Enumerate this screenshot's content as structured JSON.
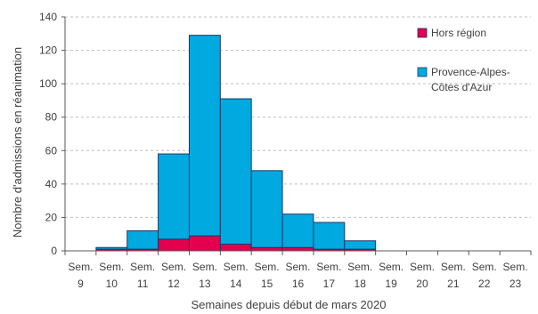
{
  "chart_data": {
    "type": "bar",
    "stacked": true,
    "categories": [
      [
        "Sem.",
        "9"
      ],
      [
        "Sem.",
        "10"
      ],
      [
        "Sem.",
        "11"
      ],
      [
        "Sem.",
        "12"
      ],
      [
        "Sem.",
        "13"
      ],
      [
        "Sem.",
        "14"
      ],
      [
        "Sem.",
        "15"
      ],
      [
        "Sem.",
        "16"
      ],
      [
        "Sem.",
        "17"
      ],
      [
        "Sem.",
        "18"
      ],
      [
        "Sem.",
        "19"
      ],
      [
        "Sem.",
        "20"
      ],
      [
        "Sem.",
        "21"
      ],
      [
        "Sem.",
        "22"
      ],
      [
        "Sem.",
        "23"
      ]
    ],
    "series": [
      {
        "name": "Hors région",
        "color": "#e2004f",
        "values": [
          0,
          1,
          1,
          7,
          9,
          4,
          2,
          2,
          1,
          1,
          0,
          0,
          0,
          0,
          0
        ]
      },
      {
        "name": [
          "Provence-Alpes-",
          "Côtes d'Azur"
        ],
        "color": "#00a9e0",
        "values": [
          0,
          1,
          11,
          51,
          120,
          87,
          46,
          20,
          16,
          5,
          0,
          0,
          0,
          0,
          0
        ]
      }
    ],
    "xlabel": "Semaines depuis début de mars 2020",
    "ylabel": "Nombre d'admissions en réanimation",
    "ylim": [
      0,
      140
    ],
    "yticks": [
      0,
      20,
      40,
      60,
      80,
      100,
      120,
      140
    ],
    "grid": true,
    "legend": "top-right"
  }
}
